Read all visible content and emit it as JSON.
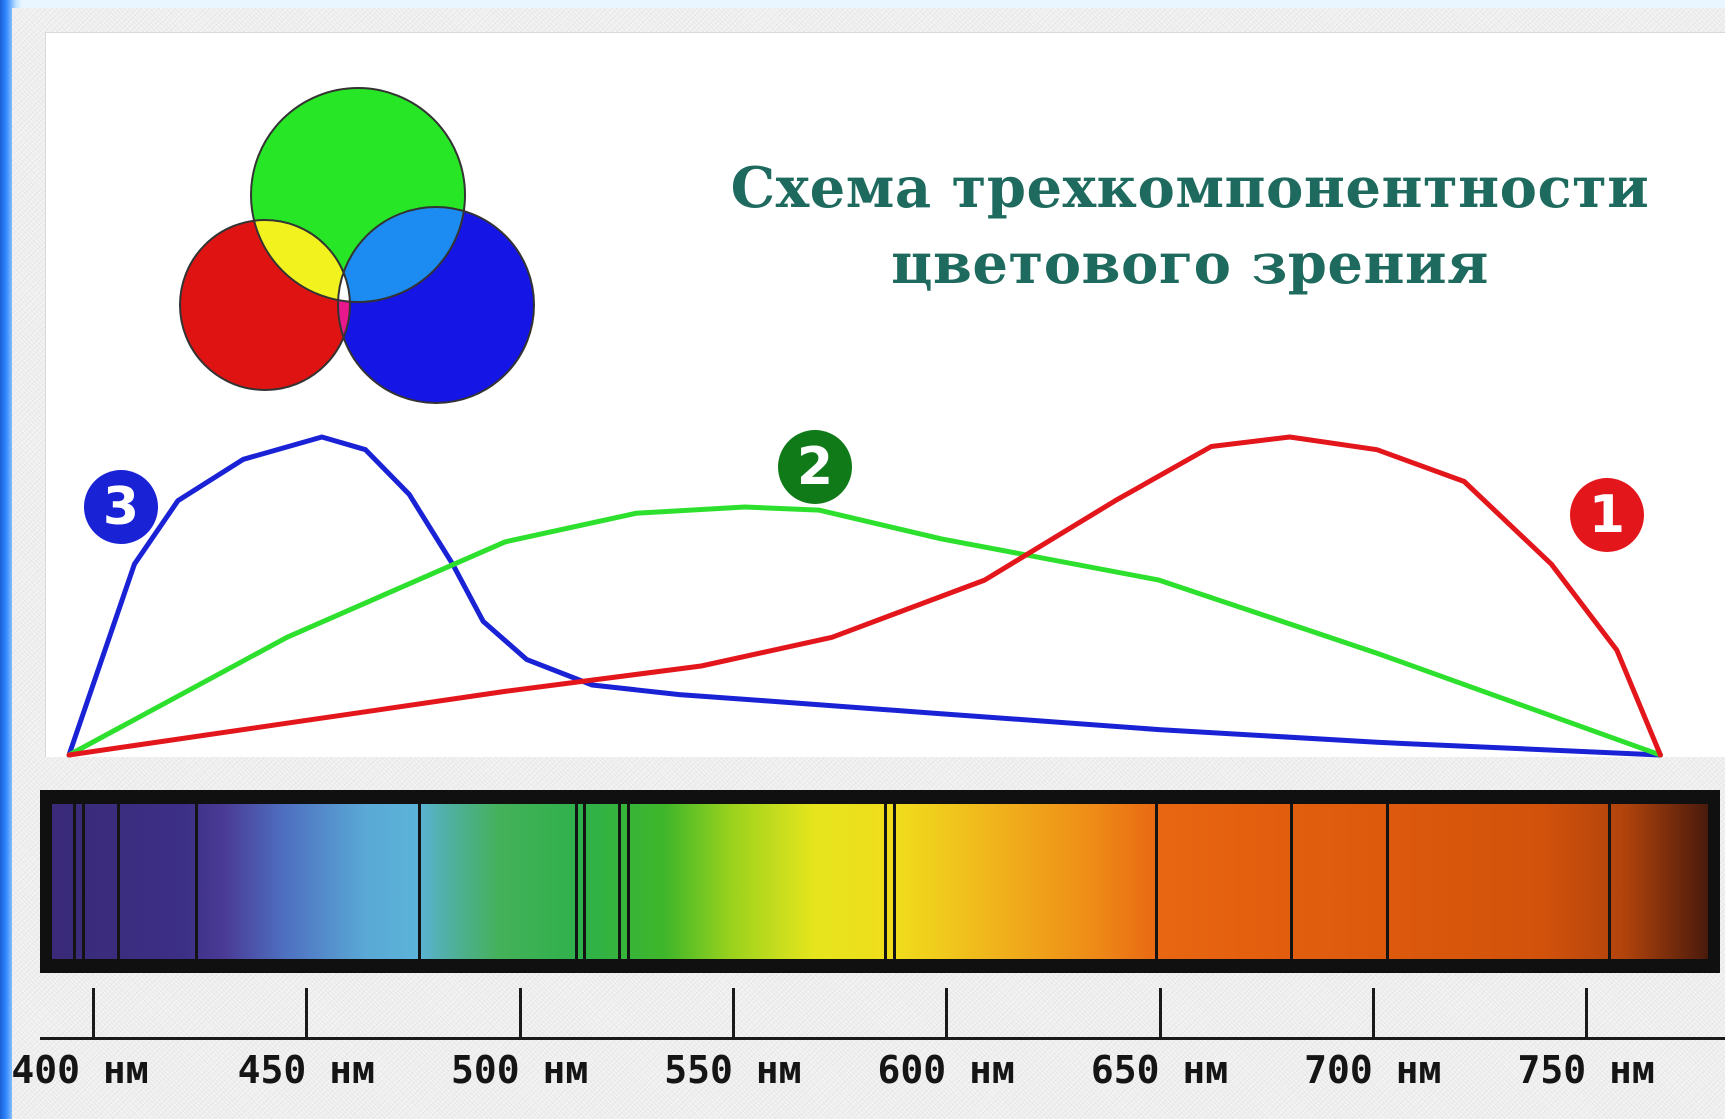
{
  "title": {
    "line1": "Схема трехкомпонентности",
    "line2": "цветового зрения"
  },
  "badges": {
    "red": "1",
    "green": "2",
    "blue": "3"
  },
  "colors": {
    "red_curve": "#e3161c",
    "green_curve": "#2ee02e",
    "blue_curve": "#1a22d6",
    "title_color": "#1f6a5e",
    "badge_green": "#107a18"
  },
  "venn": {
    "circles": [
      "red",
      "green",
      "blue"
    ],
    "overlaps": [
      "yellow",
      "cyan",
      "magenta",
      "white"
    ]
  },
  "axis": {
    "ticks": [
      "400 нм",
      "450 нм",
      "500 нм",
      "550 нм",
      "600 нм",
      "650 нм",
      "700 нм",
      "750 нм"
    ]
  },
  "chart_data": {
    "type": "line",
    "series": [
      {
        "name": "3",
        "x": [
          400,
          408,
          415,
          425,
          440,
          458,
          468,
          478,
          488,
          495,
          505,
          520,
          540,
          560,
          600,
          650,
          700,
          765
        ],
        "values": [
          0,
          0.32,
          0.6,
          0.8,
          0.93,
          1.0,
          0.96,
          0.82,
          0.6,
          0.42,
          0.3,
          0.22,
          0.19,
          0.17,
          0.13,
          0.08,
          0.04,
          0
        ]
      },
      {
        "name": "2",
        "x": [
          400,
          450,
          500,
          530,
          555,
          572,
          600,
          650,
          700,
          765
        ],
        "values": [
          0,
          0.37,
          0.67,
          0.76,
          0.78,
          0.77,
          0.68,
          0.55,
          0.32,
          0
        ]
      },
      {
        "name": "1",
        "x": [
          400,
          450,
          500,
          545,
          575,
          610,
          640,
          662,
          680,
          700,
          720,
          740,
          755,
          765
        ],
        "values": [
          0,
          0.1,
          0.2,
          0.28,
          0.37,
          0.55,
          0.8,
          0.97,
          1.0,
          0.96,
          0.86,
          0.6,
          0.33,
          0
        ]
      }
    ],
    "xlim": [
      400,
      765
    ],
    "ylim": [
      0,
      1
    ],
    "fraunhofer_lines_nm": [
      401,
      403,
      411,
      429,
      480,
      516,
      518,
      526,
      528,
      587,
      589,
      649,
      680,
      702,
      753
    ]
  }
}
